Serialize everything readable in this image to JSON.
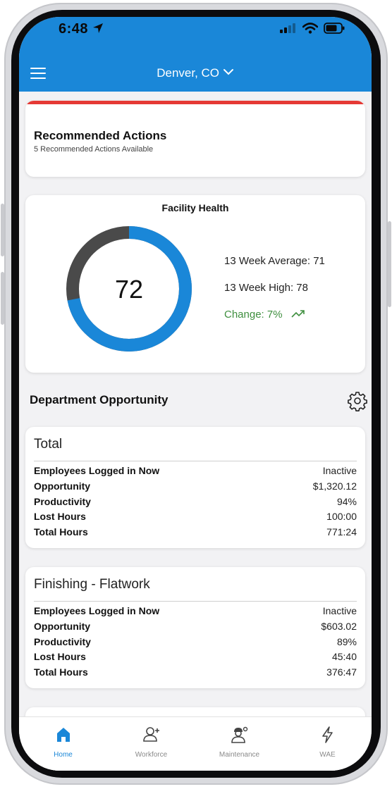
{
  "status_bar": {
    "time": "6:48"
  },
  "header": {
    "location": "Denver, CO"
  },
  "recommended": {
    "title": "Recommended Actions",
    "subtitle": "5 Recommended Actions Available"
  },
  "facility_health": {
    "title": "Facility Health",
    "score": "72",
    "score_value": 72,
    "average": "13 Week Average: 71",
    "high": "13 Week High: 78",
    "change": "Change: 7%",
    "colors": {
      "filled": "#1a87d8",
      "remaining": "#4a4a4a"
    }
  },
  "department": {
    "title": "Department Opportunity",
    "cards": [
      {
        "name": "Total",
        "rows": [
          {
            "label": "Employees Logged in Now",
            "value": "Inactive"
          },
          {
            "label": "Opportunity",
            "value": "$1,320.12"
          },
          {
            "label": "Productivity",
            "value": "94%"
          },
          {
            "label": "Lost Hours",
            "value": "100:00"
          },
          {
            "label": "Total Hours",
            "value": "771:24"
          }
        ]
      },
      {
        "name": "Finishing - Flatwork",
        "rows": [
          {
            "label": "Employees Logged in Now",
            "value": "Inactive"
          },
          {
            "label": "Opportunity",
            "value": "$603.02"
          },
          {
            "label": "Productivity",
            "value": "89%"
          },
          {
            "label": "Lost Hours",
            "value": "45:40"
          },
          {
            "label": "Total Hours",
            "value": "376:47"
          }
        ]
      }
    ]
  },
  "tabs": [
    {
      "label": "Home",
      "icon": "home-icon"
    },
    {
      "label": "Workforce",
      "icon": "user-add-icon"
    },
    {
      "label": "Maintenance",
      "icon": "worker-gear-icon"
    },
    {
      "label": "WAE",
      "icon": "lightning-icon"
    }
  ]
}
